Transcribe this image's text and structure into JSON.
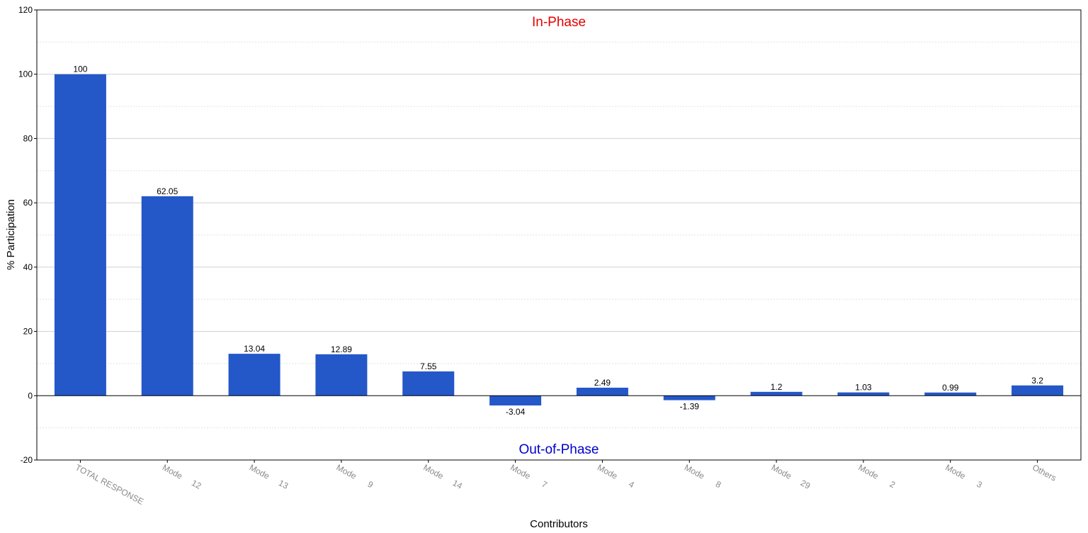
{
  "chart_data": {
    "type": "bar",
    "categories": [
      "TOTAL RESPONSE",
      "Mode     12",
      "Mode     13",
      "Mode      9",
      "Mode     14",
      "Mode      7",
      "Mode      4",
      "Mode      8",
      "Mode     29",
      "Mode      2",
      "Mode      3",
      "Others"
    ],
    "values": [
      100,
      62.05,
      13.04,
      12.89,
      7.55,
      -3.04,
      2.49,
      -1.39,
      1.2,
      1.03,
      0.99,
      3.2
    ],
    "value_labels": [
      "100",
      "62.05",
      "13.04",
      "12.89",
      "7.55",
      "-3.04",
      "2.49",
      "-1.39",
      "1.2",
      "1.03",
      "0.99",
      "3.2"
    ],
    "title": "",
    "xlabel": "Contributors",
    "ylabel": "% Participation",
    "ylim": [
      -20,
      120
    ],
    "yticks": [
      -20,
      0,
      20,
      40,
      60,
      80,
      100,
      120
    ],
    "grid": true,
    "legend": "none",
    "annotations": {
      "top": "In-Phase",
      "bottom": "Out-of-Phase"
    },
    "colors": {
      "bar": "#2457c8",
      "in_phase": "#e60000",
      "out_of_phase": "#0000cc",
      "grid_major": "#d0d0d0",
      "grid_minor": "#e2e2e2",
      "x_tick_labels": "#8a8a8a"
    }
  }
}
